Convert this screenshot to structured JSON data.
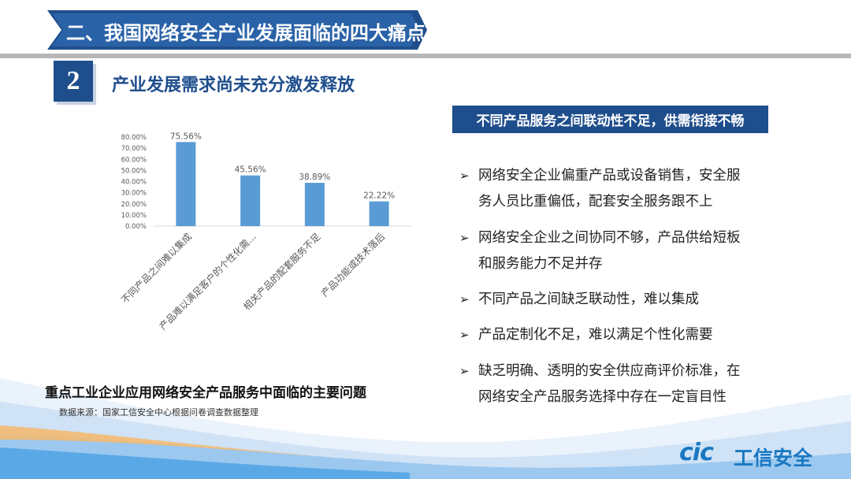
{
  "header": {
    "title": "二、我国网络安全产业发展面临的四大痛点",
    "accent": "#1f4e8c"
  },
  "section": {
    "number": "2",
    "title": "产业发展需求尚未充分激发释放"
  },
  "chart_data": {
    "type": "bar",
    "categories": [
      "不同产品之间难以集成",
      "产品难以满足客户的个性化需...",
      "相关产品的配套服务不足",
      "产品功能或技术落后"
    ],
    "values": [
      75.56,
      45.56,
      38.89,
      22.22
    ],
    "data_labels": [
      "75.56%",
      "45.56%",
      "38.89%",
      "22.22%"
    ],
    "y_ticks": [
      "0.00%",
      "10.00%",
      "20.00%",
      "30.00%",
      "40.00%",
      "50.00%",
      "60.00%",
      "70.00%",
      "80.00%"
    ],
    "ylim": [
      0,
      80
    ],
    "grid": false,
    "bar_color": "#5b9bd5"
  },
  "caption": {
    "title": "重点工业企业应用网络安全产品服务中面临的主要问题",
    "source": "数据来源：国家工信安全中心根据问卷调查数据整理"
  },
  "panel": {
    "heading": "不同产品服务之间联动性不足，供需衔接不畅",
    "bullet_icon": "arrow-bullet-icon",
    "bullets": [
      {
        "line1": "网络安全企业偏重产品或设备销售，安全服",
        "line2": "务人员比重偏低，配套安全服务跟不上"
      },
      {
        "line1": "网络安全企业之间协同不够，产品供给短板",
        "line2": "和服务能力不足并存"
      },
      {
        "line1": "不同产品之间缺乏联动性，难以集成",
        "line2": ""
      },
      {
        "line1": "产品定制化不足，难以满足个性化需要",
        "line2": ""
      },
      {
        "line1": "缺乏明确、透明的安全供应商评价标准，在",
        "line2": "网络安全产品服务选择中存在一定盲目性"
      }
    ]
  },
  "logo": {
    "mark": "cic",
    "name": "工信安全",
    "color": "#1a78c2"
  }
}
